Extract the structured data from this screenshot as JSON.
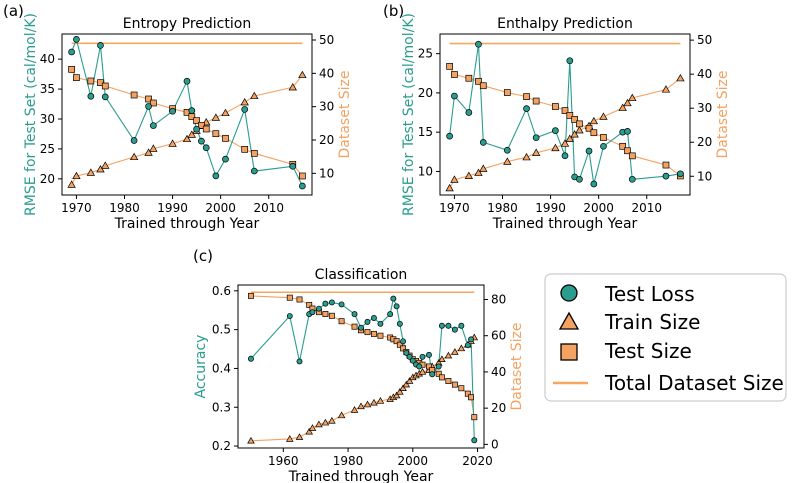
{
  "colors": {
    "teal": "#2a9d8f",
    "orange": "#f4a261",
    "orange_line": "#f4a261",
    "total_line": "#f6a65d",
    "axis": "#000000",
    "legend_border": "#cccccc"
  },
  "panel_labels": [
    "(a)",
    "(b)",
    "(c)"
  ],
  "legend": {
    "items": [
      {
        "label": "Test Loss",
        "marker": "circle",
        "color": "#2a9d8f"
      },
      {
        "label": "Train Size",
        "marker": "triangle",
        "color": "#f4a261"
      },
      {
        "label": "Test Size",
        "marker": "square",
        "color": "#f4a261"
      },
      {
        "label": "Total Dataset Size",
        "marker": "line",
        "color": "#f6a65d"
      }
    ]
  },
  "chart_data": [
    {
      "type": "line",
      "title": "Entropy Prediction",
      "xlabel": "Trained through Year",
      "ylabel": "RMSE for Test Set (cal/mol/K)",
      "y2label": "Dataset Size",
      "xlim": [
        1967,
        2019
      ],
      "ylim": [
        17.3,
        44.2
      ],
      "y2lim": [
        3.5,
        51.8
      ],
      "xticks": [
        1970,
        1980,
        1990,
        2000,
        2010
      ],
      "yticks": [
        20,
        25,
        30,
        35,
        40
      ],
      "y2ticks": [
        10,
        20,
        30,
        40,
        50
      ],
      "total_size": 49,
      "test_loss": {
        "x": [
          1969,
          1970,
          1973,
          1975,
          1976,
          1982,
          1985,
          1986,
          1990,
          1993,
          1994,
          1995,
          1996,
          1997,
          1999,
          2001,
          2005,
          2007,
          2015,
          2017
        ],
        "y": [
          41.2,
          43.3,
          33.8,
          42.3,
          33.7,
          26.4,
          32.1,
          28.9,
          31.3,
          36.3,
          31.4,
          28.3,
          26.3,
          25.2,
          20.5,
          23.3,
          31.6,
          21.3,
          22.1,
          18.8
        ]
      },
      "train_size": {
        "x": [
          1969,
          1970,
          1973,
          1975,
          1976,
          1982,
          1985,
          1986,
          1990,
          1993,
          1994,
          1995,
          1996,
          1997,
          1999,
          2001,
          2005,
          2007,
          2015,
          2017
        ],
        "y": [
          6.6,
          9.2,
          10.2,
          11.2,
          12.3,
          14.9,
          16.2,
          17.4,
          18.9,
          20.3,
          21.6,
          22.8,
          24.2,
          25.3,
          26.7,
          28.1,
          31.3,
          33.2,
          35.8,
          39.5
        ]
      },
      "test_size": {
        "x": [
          1969,
          1970,
          1973,
          1975,
          1976,
          1982,
          1985,
          1986,
          1990,
          1993,
          1994,
          1995,
          1996,
          1997,
          1999,
          2001,
          2005,
          2007,
          2015,
          2017
        ],
        "y": [
          41.2,
          38.7,
          37.7,
          37.2,
          36.2,
          33.5,
          32.3,
          31.1,
          29.4,
          28.3,
          27.0,
          25.8,
          24.4,
          23.3,
          21.9,
          20.5,
          17.2,
          16.0,
          12.7,
          9.2
        ]
      }
    },
    {
      "type": "line",
      "title": "Enthalpy Prediction",
      "xlabel": "Trained through Year",
      "ylabel": "RMSE for Test Set (cal/mol/K)",
      "y2label": "Dataset Size",
      "xlim": [
        1967,
        2019
      ],
      "ylim": [
        7.0,
        27.5
      ],
      "y2lim": [
        4.5,
        51.8
      ],
      "xticks": [
        1970,
        1980,
        1990,
        2000,
        2010
      ],
      "yticks": [
        10,
        15,
        20,
        25
      ],
      "y2ticks": [
        10,
        20,
        30,
        40,
        50
      ],
      "total_size": 49,
      "test_loss": {
        "x": [
          1969,
          1970,
          1973,
          1975,
          1976,
          1981,
          1985,
          1987,
          1991,
          1993,
          1994,
          1995,
          1996,
          1998,
          1999,
          2001,
          2005,
          2006,
          2007,
          2014,
          2017
        ],
        "y": [
          14.5,
          19.6,
          17.5,
          26.2,
          13.7,
          12.7,
          18.0,
          14.3,
          15.2,
          12.0,
          24.1,
          9.3,
          9.0,
          12.6,
          8.4,
          13.2,
          15.0,
          15.1,
          9.0,
          9.4,
          9.7
        ]
      },
      "train_size": {
        "x": [
          1969,
          1970,
          1973,
          1975,
          1976,
          1981,
          1985,
          1987,
          1991,
          1993,
          1994,
          1995,
          1996,
          1998,
          1999,
          2001,
          2005,
          2006,
          2007,
          2014,
          2017
        ],
        "y": [
          6.5,
          9.0,
          10.1,
          11.0,
          12.2,
          14.3,
          15.6,
          16.9,
          18.3,
          19.6,
          21.0,
          22.3,
          23.5,
          24.8,
          26.2,
          27.5,
          30.1,
          31.5,
          33.0,
          35.5,
          38.8
        ]
      },
      "test_size": {
        "x": [
          1969,
          1970,
          1973,
          1975,
          1976,
          1981,
          1985,
          1987,
          1991,
          1993,
          1994,
          1995,
          1996,
          1998,
          1999,
          2001,
          2005,
          2006,
          2007,
          2014,
          2017
        ],
        "y": [
          42.3,
          39.9,
          38.8,
          37.9,
          36.6,
          34.6,
          33.4,
          32.1,
          30.5,
          29.3,
          27.9,
          26.7,
          25.4,
          24.1,
          22.8,
          21.4,
          18.8,
          17.5,
          16.0,
          13.3,
          10.1
        ]
      }
    },
    {
      "type": "line",
      "title": "Classification",
      "xlabel": "Trained through Year",
      "ylabel": "Accuracy",
      "y2label": "Dataset Size",
      "xlim": [
        1946,
        2022
      ],
      "ylim": [
        0.195,
        0.615
      ],
      "y2lim": [
        -2,
        88
      ],
      "xticks": [
        1960,
        1980,
        2000,
        2020
      ],
      "yticks": [
        0.2,
        0.3,
        0.4,
        0.5,
        0.6
      ],
      "y2ticks": [
        0,
        20,
        40,
        60,
        80
      ],
      "total_size": 84,
      "test_loss": {
        "x": [
          1950,
          1962,
          1965,
          1968,
          1969,
          1971,
          1973,
          1975,
          1978,
          1982,
          1984,
          1986,
          1988,
          1990,
          1993,
          1994,
          1995,
          1996,
          1997,
          1998,
          1999,
          2000,
          2001,
          2002,
          2003,
          2005,
          2006,
          2008,
          2009,
          2011,
          2013,
          2015,
          2017,
          2018,
          2019
        ],
        "y": [
          0.425,
          0.535,
          0.418,
          0.54,
          0.545,
          0.554,
          0.567,
          0.57,
          0.565,
          0.54,
          0.505,
          0.52,
          0.53,
          0.515,
          0.54,
          0.58,
          0.56,
          0.515,
          0.47,
          0.44,
          0.43,
          0.42,
          0.41,
          0.405,
          0.43,
          0.435,
          0.385,
          0.405,
          0.51,
          0.51,
          0.5,
          0.51,
          0.46,
          0.475,
          0.215
        ]
      },
      "train_size": {
        "x": [
          1950,
          1962,
          1965,
          1968,
          1969,
          1971,
          1973,
          1975,
          1978,
          1982,
          1984,
          1986,
          1988,
          1990,
          1993,
          1994,
          1995,
          1996,
          1997,
          1998,
          1999,
          2000,
          2001,
          2002,
          2003,
          2005,
          2006,
          2008,
          2009,
          2011,
          2013,
          2015,
          2017,
          2018,
          2019
        ],
        "y": [
          2,
          3,
          4,
          7,
          9,
          11,
          12,
          13,
          16,
          19,
          21,
          22,
          23,
          24,
          25,
          26,
          27,
          29,
          31,
          33,
          35,
          37,
          38,
          39,
          40,
          41,
          43,
          45,
          47,
          49,
          51,
          53,
          55,
          57,
          59
        ]
      },
      "test_size": {
        "x": [
          1950,
          1962,
          1965,
          1968,
          1969,
          1971,
          1973,
          1975,
          1978,
          1982,
          1984,
          1986,
          1988,
          1990,
          1993,
          1994,
          1995,
          1996,
          1997,
          1998,
          1999,
          2000,
          2001,
          2002,
          2003,
          2005,
          2006,
          2008,
          2009,
          2011,
          2013,
          2015,
          2017,
          2018,
          2019
        ],
        "y": [
          82,
          81,
          80,
          77,
          75,
          73,
          72,
          71,
          68,
          65,
          63,
          62,
          61,
          60,
          59,
          58,
          57,
          55,
          53,
          51,
          49,
          47,
          46,
          45,
          44,
          43,
          41,
          39,
          37,
          35,
          33,
          31,
          28,
          26,
          15
        ]
      }
    }
  ]
}
